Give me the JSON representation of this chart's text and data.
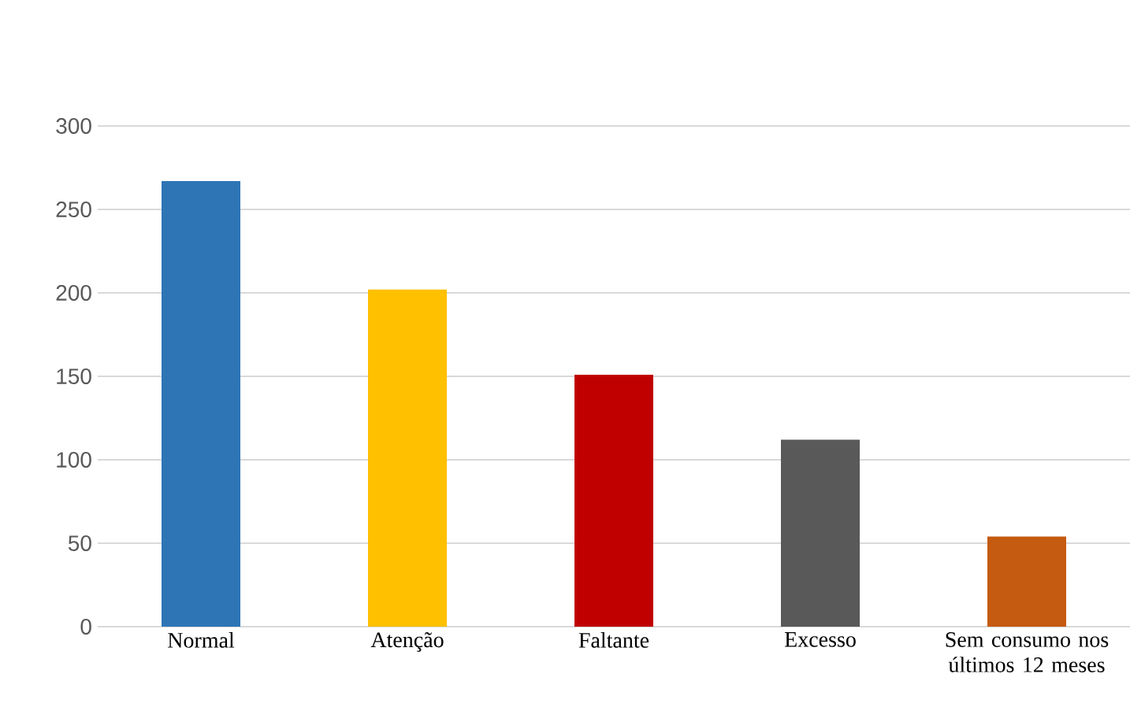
{
  "chart_data": {
    "type": "bar",
    "categories": [
      "Normal",
      "Atenção",
      "Faltante",
      "Excesso",
      "Sem consumo nos últimos 12 meses"
    ],
    "values": [
      267,
      202,
      151,
      112,
      54
    ],
    "colors": [
      "#2e75b6",
      "#ffc000",
      "#c00000",
      "#595959",
      "#c55a11"
    ],
    "ylim": [
      0,
      300
    ],
    "yticks": [
      0,
      50,
      100,
      150,
      200,
      250,
      300
    ],
    "grid": "y"
  }
}
